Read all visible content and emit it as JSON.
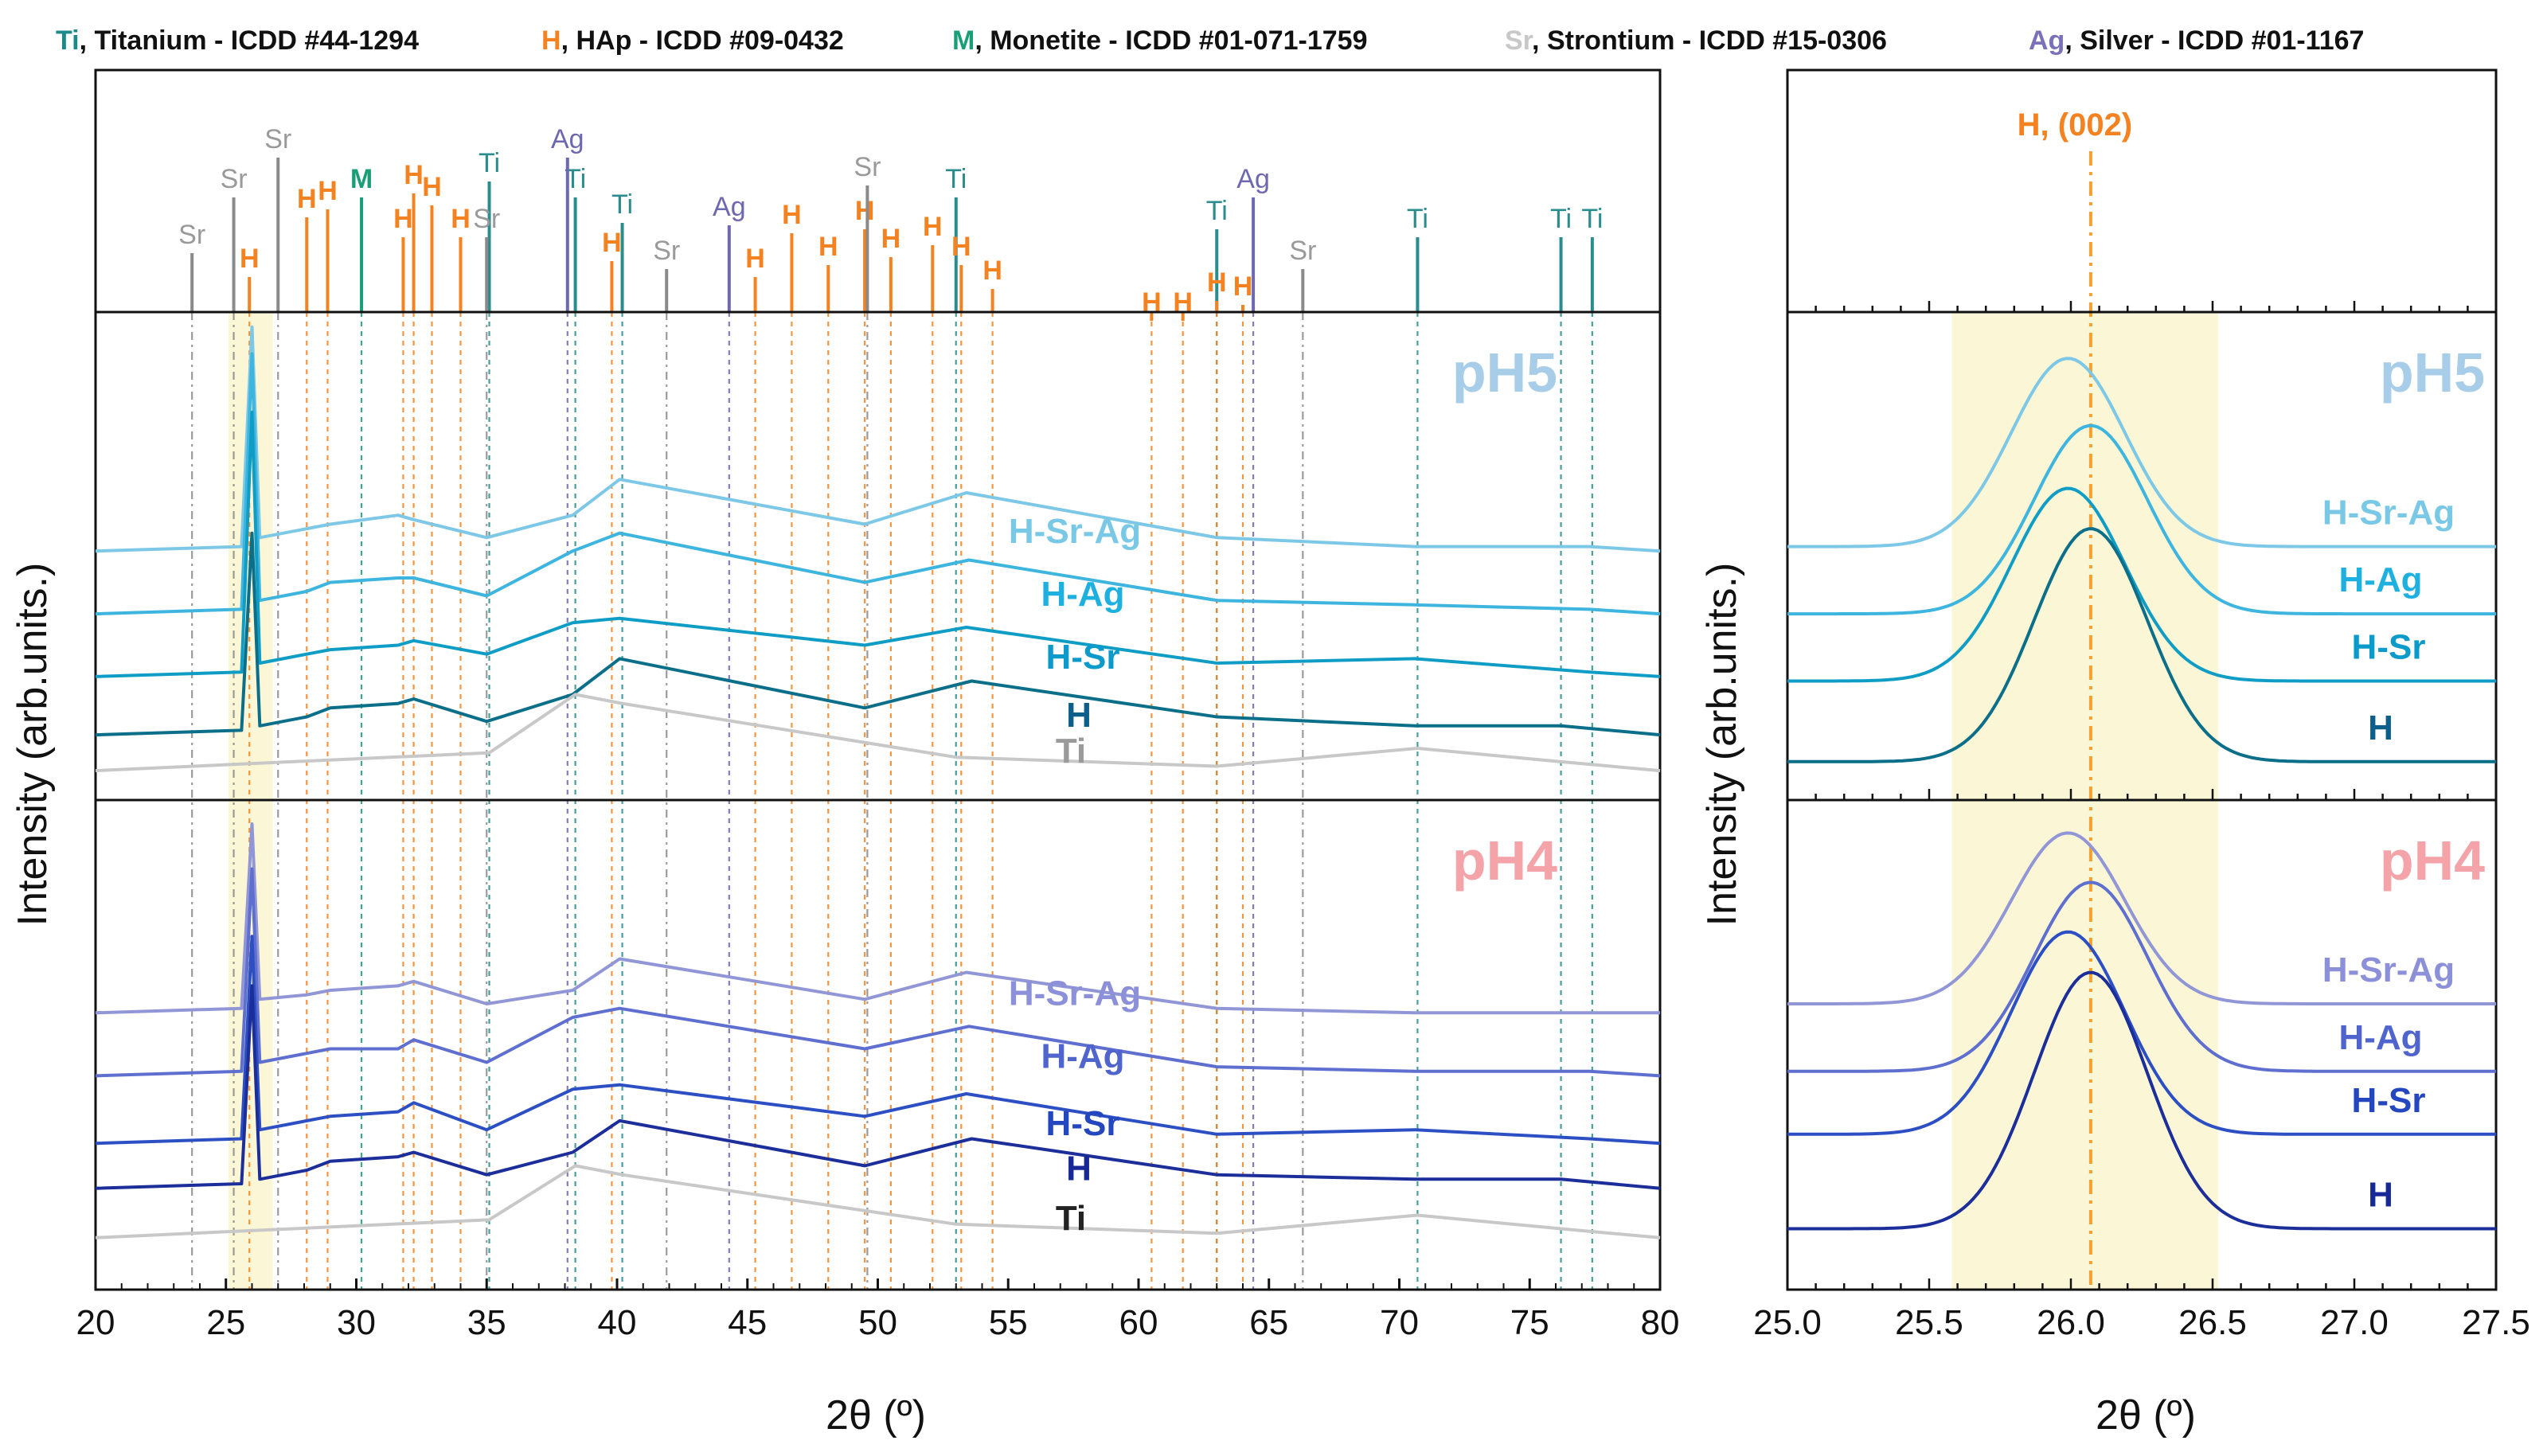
{
  "legend": [
    {
      "symbol": "Ti",
      "text": ", Titanium - ICDD #44-1294",
      "color": "#1d8a8a"
    },
    {
      "symbol": "H",
      "text": ", HAp - ICDD #09-0432",
      "color": "#f58220"
    },
    {
      "symbol": "M",
      "text": ", Monetite - ICDD #01-071-1759",
      "color": "#1a9e77"
    },
    {
      "symbol": "Sr",
      "text": ", Strontium - ICDD #15-0306",
      "color": "#c8c8c8"
    },
    {
      "symbol": "Ag",
      "text": ", Silver - ICDD #01-1167",
      "color": "#7b71b8"
    }
  ],
  "colors": {
    "ti_ref": "#2a8c8c",
    "hap_ref": "#f58220",
    "monetite_ref": "#1a9e77",
    "sr_ref": "#8a8a8a",
    "ag_ref": "#6e68b0",
    "ph5_label": "#a8cde8",
    "ph4_label": "#f4a3a8",
    "highlight": "#fbf7d6",
    "pH5_series": [
      "#7cc8e6",
      "#3db5df",
      "#0f9dc6",
      "#0c6f8a",
      "#c8c8c8"
    ],
    "pH4_series": [
      "#9196d6",
      "#5e6fd0",
      "#2c4fc4",
      "#1b2e9a",
      "#c8c8c8"
    ],
    "pH5_label_colors": [
      "#79c8e6",
      "#1eb1e0",
      "#0c9acb",
      "#0c5f8a",
      "#9a9a9a"
    ],
    "pH4_label_colors": [
      "#8b90d8",
      "#4f64cc",
      "#2447c0",
      "#182896",
      "#222222"
    ]
  },
  "chart_data": [
    {
      "type": "line",
      "title": "",
      "xlabel": "2θ (º)",
      "ylabel": "Intensity (arb.units.)",
      "xlim": [
        20,
        80
      ],
      "xticks": [
        20,
        25,
        30,
        35,
        40,
        45,
        50,
        55,
        60,
        65,
        70,
        75,
        80
      ],
      "highlight_band": [
        25.1,
        26.8
      ],
      "reference_peaks": {
        "Ti": [
          35.1,
          38.4,
          40.2,
          53.0,
          63.0,
          70.7,
          76.2,
          77.4
        ],
        "H": [
          25.9,
          28.1,
          28.9,
          31.8,
          32.2,
          32.9,
          34.0,
          39.8,
          45.3,
          46.7,
          48.1,
          49.5,
          50.5,
          52.1,
          53.2,
          54.4,
          60.5,
          61.7,
          63.0,
          64.0
        ],
        "M": [
          30.2
        ],
        "Sr": [
          23.7,
          25.3,
          27.0,
          35.0,
          41.9,
          49.6,
          66.3
        ],
        "Ag": [
          38.1,
          44.3,
          64.4
        ]
      },
      "panels": [
        {
          "label": "pH5",
          "series": [
            {
              "name": "H-Sr-Ag",
              "values": [
                [
                  20,
                  0.52
                ],
                [
                  25.6,
                  0.53
                ],
                [
                  26.0,
                  1.02
                ],
                [
                  26.3,
                  0.55
                ],
                [
                  28.1,
                  0.57
                ],
                [
                  29.0,
                  0.58
                ],
                [
                  31.6,
                  0.6
                ],
                [
                  32.2,
                  0.59
                ],
                [
                  35.0,
                  0.55
                ],
                [
                  38.3,
                  0.6
                ],
                [
                  40.1,
                  0.68
                ],
                [
                  49.5,
                  0.58
                ],
                [
                  53.4,
                  0.65
                ],
                [
                  63.0,
                  0.55
                ],
                [
                  70.6,
                  0.53
                ],
                [
                  77.3,
                  0.53
                ],
                [
                  80,
                  0.52
                ]
              ]
            },
            {
              "name": "H-Ag",
              "values": [
                [
                  20,
                  0.38
                ],
                [
                  25.6,
                  0.39
                ],
                [
                  26.0,
                  0.96
                ],
                [
                  26.3,
                  0.41
                ],
                [
                  28.1,
                  0.43
                ],
                [
                  29.0,
                  0.45
                ],
                [
                  31.6,
                  0.46
                ],
                [
                  32.2,
                  0.46
                ],
                [
                  35.0,
                  0.42
                ],
                [
                  38.3,
                  0.52
                ],
                [
                  40.1,
                  0.56
                ],
                [
                  49.5,
                  0.45
                ],
                [
                  53.5,
                  0.5
                ],
                [
                  63.0,
                  0.41
                ],
                [
                  70.6,
                  0.4
                ],
                [
                  77.3,
                  0.39
                ],
                [
                  80,
                  0.38
                ]
              ]
            },
            {
              "name": "H-Sr",
              "values": [
                [
                  20,
                  0.24
                ],
                [
                  25.6,
                  0.25
                ],
                [
                  26.0,
                  0.83
                ],
                [
                  26.3,
                  0.27
                ],
                [
                  28.1,
                  0.29
                ],
                [
                  29.0,
                  0.3
                ],
                [
                  31.6,
                  0.31
                ],
                [
                  32.2,
                  0.32
                ],
                [
                  35.0,
                  0.29
                ],
                [
                  38.3,
                  0.36
                ],
                [
                  40.1,
                  0.37
                ],
                [
                  49.5,
                  0.31
                ],
                [
                  53.4,
                  0.35
                ],
                [
                  63.0,
                  0.27
                ],
                [
                  70.6,
                  0.28
                ],
                [
                  77.3,
                  0.25
                ],
                [
                  80,
                  0.24
                ]
              ]
            },
            {
              "name": "H",
              "values": [
                [
                  20,
                  0.11
                ],
                [
                  25.6,
                  0.12
                ],
                [
                  26.0,
                  0.56
                ],
                [
                  26.3,
                  0.13
                ],
                [
                  28.1,
                  0.15
                ],
                [
                  29.0,
                  0.17
                ],
                [
                  31.6,
                  0.18
                ],
                [
                  32.2,
                  0.19
                ],
                [
                  35.0,
                  0.14
                ],
                [
                  38.3,
                  0.2
                ],
                [
                  40.1,
                  0.28
                ],
                [
                  49.5,
                  0.17
                ],
                [
                  53.6,
                  0.23
                ],
                [
                  63.0,
                  0.15
                ],
                [
                  70.6,
                  0.13
                ],
                [
                  76.2,
                  0.13
                ],
                [
                  80,
                  0.11
                ]
              ]
            },
            {
              "name": "Ti",
              "values": [
                [
                  20,
                  0.03
                ],
                [
                  35.1,
                  0.07
                ],
                [
                  38.4,
                  0.2
                ],
                [
                  40.2,
                  0.18
                ],
                [
                  53.0,
                  0.06
                ],
                [
                  63.0,
                  0.04
                ],
                [
                  70.7,
                  0.08
                ],
                [
                  76.2,
                  0.05
                ],
                [
                  80,
                  0.03
                ]
              ]
            }
          ]
        },
        {
          "label": "pH4",
          "series": [
            {
              "name": "H-Sr-Ag",
              "values": [
                [
                  20,
                  0.58
                ],
                [
                  25.6,
                  0.59
                ],
                [
                  26.0,
                  1.0
                ],
                [
                  26.3,
                  0.61
                ],
                [
                  28.1,
                  0.62
                ],
                [
                  29.0,
                  0.63
                ],
                [
                  31.6,
                  0.64
                ],
                [
                  32.2,
                  0.65
                ],
                [
                  35.0,
                  0.6
                ],
                [
                  38.3,
                  0.63
                ],
                [
                  40.1,
                  0.7
                ],
                [
                  49.5,
                  0.61
                ],
                [
                  53.4,
                  0.67
                ],
                [
                  63.0,
                  0.59
                ],
                [
                  70.6,
                  0.58
                ],
                [
                  77.3,
                  0.58
                ],
                [
                  80,
                  0.58
                ]
              ]
            },
            {
              "name": "H-Ag",
              "values": [
                [
                  20,
                  0.44
                ],
                [
                  25.6,
                  0.45
                ],
                [
                  26.0,
                  0.9
                ],
                [
                  26.3,
                  0.47
                ],
                [
                  28.1,
                  0.49
                ],
                [
                  29.0,
                  0.5
                ],
                [
                  31.6,
                  0.5
                ],
                [
                  32.2,
                  0.52
                ],
                [
                  35.0,
                  0.47
                ],
                [
                  38.3,
                  0.57
                ],
                [
                  40.1,
                  0.59
                ],
                [
                  49.5,
                  0.5
                ],
                [
                  53.5,
                  0.55
                ],
                [
                  63.0,
                  0.46
                ],
                [
                  70.6,
                  0.45
                ],
                [
                  77.3,
                  0.45
                ],
                [
                  80,
                  0.44
                ]
              ]
            },
            {
              "name": "H-Sr",
              "values": [
                [
                  20,
                  0.29
                ],
                [
                  25.6,
                  0.3
                ],
                [
                  26.0,
                  0.75
                ],
                [
                  26.3,
                  0.32
                ],
                [
                  28.1,
                  0.34
                ],
                [
                  29.0,
                  0.35
                ],
                [
                  31.6,
                  0.36
                ],
                [
                  32.2,
                  0.38
                ],
                [
                  35.0,
                  0.32
                ],
                [
                  38.3,
                  0.41
                ],
                [
                  40.1,
                  0.42
                ],
                [
                  49.5,
                  0.35
                ],
                [
                  53.4,
                  0.4
                ],
                [
                  63.0,
                  0.31
                ],
                [
                  70.6,
                  0.32
                ],
                [
                  77.3,
                  0.3
                ],
                [
                  80,
                  0.29
                ]
              ]
            },
            {
              "name": "H",
              "values": [
                [
                  20,
                  0.19
                ],
                [
                  25.6,
                  0.2
                ],
                [
                  26.0,
                  0.64
                ],
                [
                  26.3,
                  0.21
                ],
                [
                  28.1,
                  0.23
                ],
                [
                  29.0,
                  0.25
                ],
                [
                  31.6,
                  0.26
                ],
                [
                  32.2,
                  0.27
                ],
                [
                  35.0,
                  0.22
                ],
                [
                  38.3,
                  0.27
                ],
                [
                  40.1,
                  0.34
                ],
                [
                  49.5,
                  0.24
                ],
                [
                  53.6,
                  0.3
                ],
                [
                  63.0,
                  0.22
                ],
                [
                  70.6,
                  0.21
                ],
                [
                  76.2,
                  0.21
                ],
                [
                  80,
                  0.19
                ]
              ]
            },
            {
              "name": "Ti",
              "values": [
                [
                  20,
                  0.08
                ],
                [
                  35.1,
                  0.12
                ],
                [
                  38.4,
                  0.24
                ],
                [
                  40.2,
                  0.22
                ],
                [
                  53.0,
                  0.11
                ],
                [
                  63.0,
                  0.09
                ],
                [
                  70.7,
                  0.13
                ],
                [
                  76.2,
                  0.1
                ],
                [
                  80,
                  0.08
                ]
              ]
            }
          ]
        }
      ]
    },
    {
      "type": "line",
      "title": "",
      "xlabel": "2θ (º)",
      "ylabel": "Intensity (arb.units.)",
      "xlim": [
        25.0,
        27.5
      ],
      "xticks": [
        "25.0",
        "25.5",
        "26.0",
        "26.5",
        "27.0",
        "27.5"
      ],
      "highlight_band": [
        25.58,
        26.52
      ],
      "reference_line": {
        "x": 26.07,
        "label": "H, (002)"
      },
      "panels": [
        {
          "label": "pH5",
          "series": [
            {
              "name": "H-Sr-Ag",
              "center": 25.99,
              "baseline": 0.53,
              "amplitude": 0.42
            },
            {
              "name": "H-Ag",
              "center": 26.07,
              "baseline": 0.38,
              "amplitude": 0.42
            },
            {
              "name": "H-Sr",
              "center": 25.99,
              "baseline": 0.23,
              "amplitude": 0.43
            },
            {
              "name": "H",
              "center": 26.07,
              "baseline": 0.05,
              "amplitude": 0.52
            }
          ]
        },
        {
          "label": "pH4",
          "series": [
            {
              "name": "H-Sr-Ag",
              "center": 25.99,
              "baseline": 0.6,
              "amplitude": 0.38
            },
            {
              "name": "H-Ag",
              "center": 26.07,
              "baseline": 0.45,
              "amplitude": 0.42
            },
            {
              "name": "H-Sr",
              "center": 25.99,
              "baseline": 0.31,
              "amplitude": 0.45
            },
            {
              "name": "H",
              "center": 26.07,
              "baseline": 0.1,
              "amplitude": 0.57
            }
          ]
        }
      ]
    }
  ]
}
